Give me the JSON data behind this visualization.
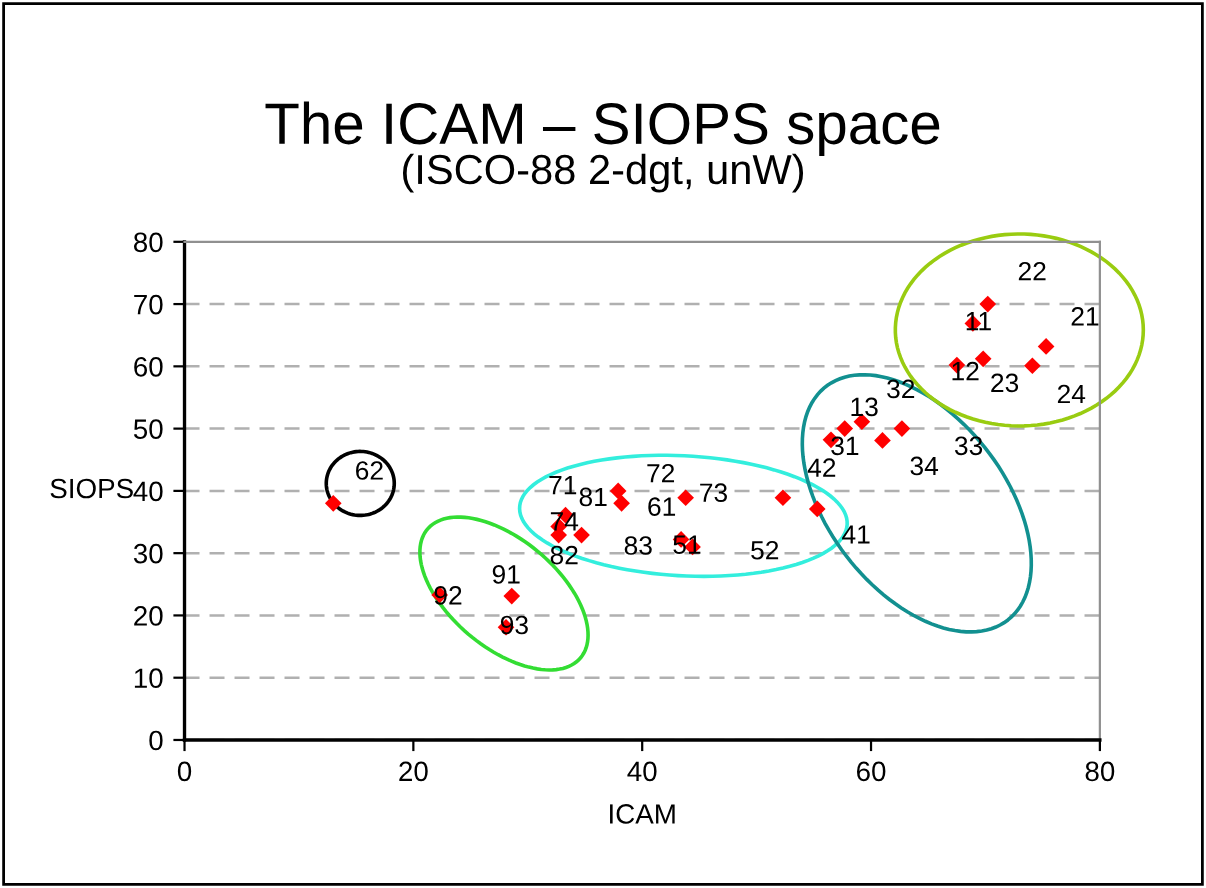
{
  "chart_data": {
    "type": "scatter",
    "title": "The ICAM – SIOPS space",
    "subtitle": "(ISCO-88 2-dgt, unW)",
    "xlabel": "ICAM",
    "ylabel": "SIOPS",
    "xlim": [
      0,
      80
    ],
    "xticks": [
      0,
      20,
      40,
      60,
      80
    ],
    "ylim": [
      0,
      80
    ],
    "yticks": [
      0,
      10,
      20,
      30,
      40,
      50,
      60,
      70,
      80
    ],
    "grid": "y",
    "marker": "diamond",
    "legend": false,
    "series": [
      {
        "color": "#ff0000",
        "x": [
          13.0,
          22.3,
          28.6,
          28.1,
          33.3,
          32.7,
          32.7,
          34.7,
          37.9,
          38.2,
          43.8,
          43.4,
          44.4,
          52.3,
          55.3,
          56.5,
          57.7,
          59.2,
          61.0,
          62.7,
          70.2,
          68.9,
          75.3,
          67.5,
          69.8,
          74.1
        ],
        "values": [
          38.0,
          23.3,
          23.1,
          18.1,
          36.1,
          34.3,
          32.9,
          32.9,
          40.0,
          38.0,
          38.9,
          32.2,
          31.0,
          38.9,
          37.1,
          48.2,
          50.0,
          51.1,
          48.1,
          50.0,
          70.0,
          66.9,
          63.2,
          60.2,
          61.2,
          60.1
        ]
      }
    ],
    "annotations": [
      {
        "text": "62",
        "x": 13.0,
        "y": 38.0
      },
      {
        "text": "92",
        "x": 22.3,
        "y": 23.3
      },
      {
        "text": "91",
        "x": 28.6,
        "y": 23.1
      },
      {
        "text": "93",
        "x": 28.1,
        "y": 18.1
      },
      {
        "text": "71",
        "x": 33.3,
        "y": 36.1
      },
      {
        "text": "74",
        "x": 32.7,
        "y": 34.3
      },
      {
        "text": "82",
        "x": 32.7,
        "y": 32.9
      },
      {
        "text": "81",
        "x": 37.9,
        "y": 40.0
      },
      {
        "text": "83",
        "x": 38.2,
        "y": 38.0
      },
      {
        "text": "72",
        "x": 43.8,
        "y": 38.9
      },
      {
        "text": "61",
        "x": 43.4,
        "y": 32.2
      },
      {
        "text": "51",
        "x": 44.4,
        "y": 31.0
      },
      {
        "text": "52",
        "x": 44.4,
        "y": 31.0
      },
      {
        "text": "73",
        "x": 52.3,
        "y": 38.9
      },
      {
        "text": "42",
        "x": 52.3,
        "y": 38.9
      },
      {
        "text": "41",
        "x": 55.3,
        "y": 37.1
      },
      {
        "text": "31",
        "x": 56.5,
        "y": 48.2
      },
      {
        "text": "13",
        "x": 57.7,
        "y": 50.0
      },
      {
        "text": "32",
        "x": 59.2,
        "y": 51.1
      },
      {
        "text": "34",
        "x": 61.0,
        "y": 48.1
      },
      {
        "text": "33",
        "x": 62.7,
        "y": 50.0
      },
      {
        "text": "22",
        "x": 70.2,
        "y": 70.0
      },
      {
        "text": "11",
        "x": 68.9,
        "y": 66.9
      },
      {
        "text": "21",
        "x": 75.3,
        "y": 63.2
      },
      {
        "text": "12",
        "x": 67.5,
        "y": 60.2
      },
      {
        "text": "23",
        "x": 74.1,
        "y": 60.1
      },
      {
        "text": "24",
        "x": 74.1,
        "y": 60.1
      }
    ]
  }
}
